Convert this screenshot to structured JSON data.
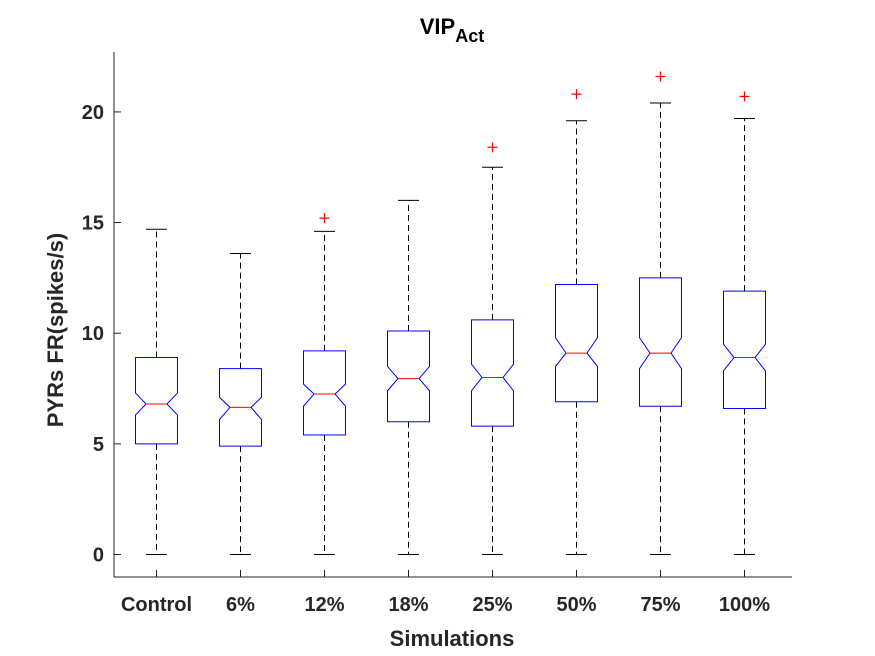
{
  "chart_data": {
    "type": "boxplot",
    "title": "VIP",
    "title_subscript": "Act",
    "xlabel": "Simulations",
    "ylabel": "PYRs FR(spikes/s)",
    "ylim": [
      -1,
      22.5
    ],
    "yticks": [
      0,
      5,
      10,
      15,
      20
    ],
    "categories": [
      "Control",
      "6%",
      "12%",
      "18%",
      "25%",
      "50%",
      "75%",
      "100%"
    ],
    "boxes": [
      {
        "whisker_low": 0,
        "q1": 5.0,
        "notch_low": 6.3,
        "median": 6.8,
        "notch_high": 7.3,
        "q3": 8.9,
        "whisker_high": 14.7,
        "outliers": []
      },
      {
        "whisker_low": 0,
        "q1": 4.9,
        "notch_low": 6.1,
        "median": 6.65,
        "notch_high": 7.1,
        "q3": 8.4,
        "whisker_high": 13.6,
        "outliers": []
      },
      {
        "whisker_low": 0,
        "q1": 5.4,
        "notch_low": 6.7,
        "median": 7.25,
        "notch_high": 7.7,
        "q3": 9.2,
        "whisker_high": 14.6,
        "outliers": [
          15.2
        ]
      },
      {
        "whisker_low": 0,
        "q1": 6.0,
        "notch_low": 7.4,
        "median": 7.95,
        "notch_high": 8.5,
        "q3": 10.1,
        "whisker_high": 16.0,
        "outliers": []
      },
      {
        "whisker_low": 0,
        "q1": 5.8,
        "notch_low": 7.4,
        "median": 8.0,
        "notch_high": 8.6,
        "q3": 10.6,
        "whisker_high": 17.5,
        "outliers": [
          18.4
        ]
      },
      {
        "whisker_low": 0,
        "q1": 6.9,
        "notch_low": 8.5,
        "median": 9.1,
        "notch_high": 9.8,
        "q3": 12.2,
        "whisker_high": 19.6,
        "outliers": [
          20.8
        ]
      },
      {
        "whisker_low": 0,
        "q1": 6.7,
        "notch_low": 8.4,
        "median": 9.1,
        "notch_high": 9.8,
        "q3": 12.5,
        "whisker_high": 20.4,
        "outliers": [
          21.6
        ]
      },
      {
        "whisker_low": 0,
        "q1": 6.6,
        "notch_low": 8.3,
        "median": 8.9,
        "notch_high": 9.5,
        "q3": 11.9,
        "whisker_high": 19.7,
        "outliers": [
          20.7
        ]
      }
    ],
    "colors": {
      "box": "#0000ff",
      "median": "#ff0000",
      "whisker": "#000000",
      "outlier": "#ff0000",
      "axis": "#262626"
    },
    "grid": false,
    "legend": "none"
  }
}
